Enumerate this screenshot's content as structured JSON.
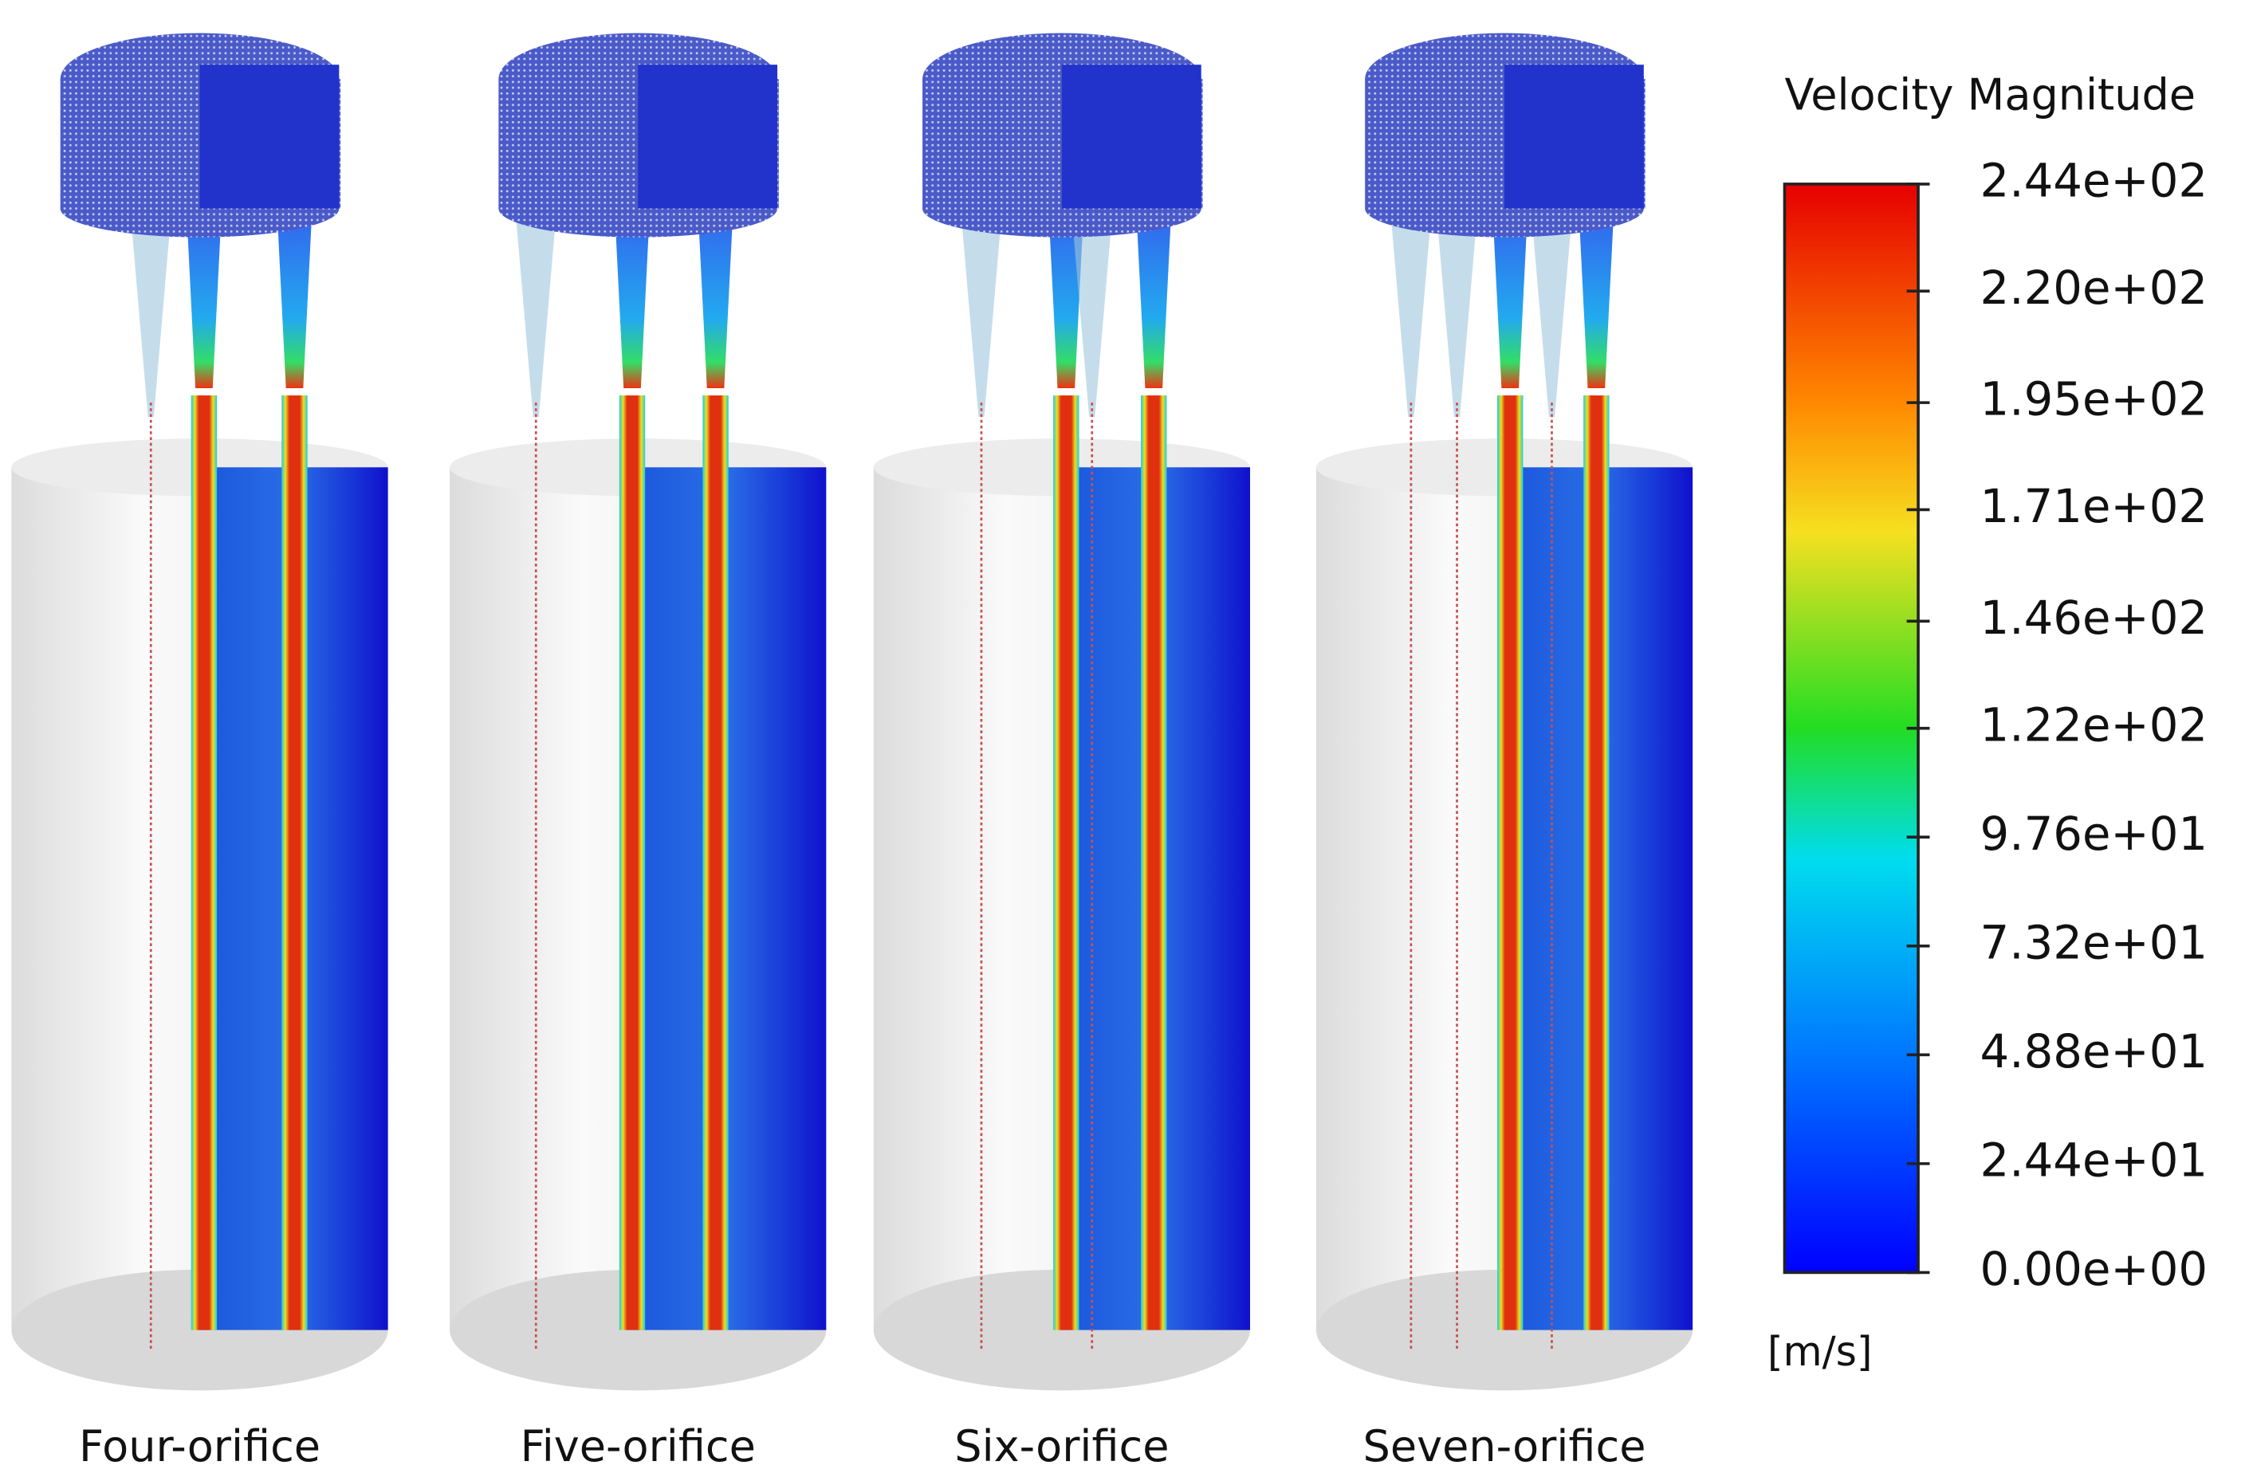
{
  "panels": [
    {
      "label": "Four-orifice"
    },
    {
      "label": "Five-orifice"
    },
    {
      "label": "Six-orifice"
    },
    {
      "label": "Seven-orifice"
    }
  ],
  "colorbar": {
    "title": "Velocity Magnitude",
    "unit": "[m/s]",
    "range": [
      0,
      244
    ],
    "ticks": [
      {
        "value": 244,
        "label": "2.44e+02"
      },
      {
        "value": 220,
        "label": "2.20e+02"
      },
      {
        "value": 195,
        "label": "1.95e+02"
      },
      {
        "value": 171,
        "label": "1.71e+02"
      },
      {
        "value": 146,
        "label": "1.46e+02"
      },
      {
        "value": 122,
        "label": "1.22e+02"
      },
      {
        "value": 97.6,
        "label": "9.76e+01"
      },
      {
        "value": 73.2,
        "label": "7.32e+01"
      },
      {
        "value": 48.8,
        "label": "4.88e+01"
      },
      {
        "value": 24.4,
        "label": "2.44e+01"
      },
      {
        "value": 0,
        "label": "0.00e+00"
      }
    ]
  }
}
